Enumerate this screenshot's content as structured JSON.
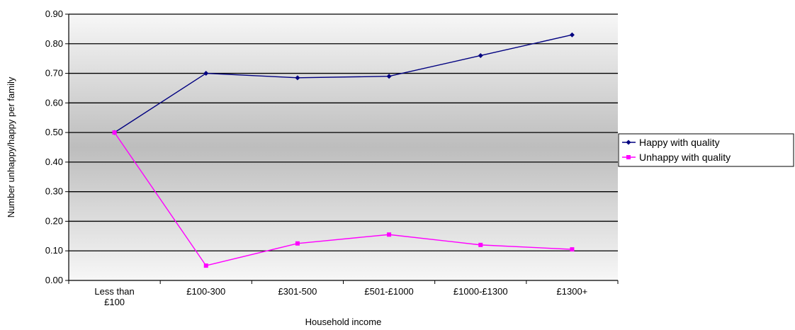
{
  "chart_data": {
    "type": "line",
    "title": "",
    "xlabel": "Household income",
    "ylabel": "Number unhappy/happy per family",
    "categories": [
      [
        "Less than",
        "£100"
      ],
      [
        "£100-300"
      ],
      [
        "£301-500"
      ],
      [
        "£501-£1000"
      ],
      [
        "£1000-£1300"
      ],
      [
        "£1300+"
      ]
    ],
    "ylim": [
      0,
      0.9
    ],
    "yticks": [
      {
        "value": 0,
        "label": "0.00"
      },
      {
        "value": 0.1,
        "label": "0.10"
      },
      {
        "value": 0.2,
        "label": "0.20"
      },
      {
        "value": 0.3,
        "label": "0.30"
      },
      {
        "value": 0.4,
        "label": "0.40"
      },
      {
        "value": 0.5,
        "label": "0.50"
      },
      {
        "value": 0.6,
        "label": "0.60"
      },
      {
        "value": 0.7,
        "label": "0.70"
      },
      {
        "value": 0.8,
        "label": "0.80"
      },
      {
        "value": 0.9,
        "label": "0.90"
      }
    ],
    "grid": true,
    "legend_position": "right",
    "series": [
      {
        "name": "Happy with quality",
        "color": "#000080",
        "marker": "diamond",
        "values": [
          0.5,
          0.7,
          0.685,
          0.69,
          0.76,
          0.83
        ]
      },
      {
        "name": "Unhappy with quality",
        "color": "#ff00ff",
        "marker": "square",
        "values": [
          0.5,
          0.05,
          0.125,
          0.155,
          0.12,
          0.105
        ]
      }
    ]
  }
}
